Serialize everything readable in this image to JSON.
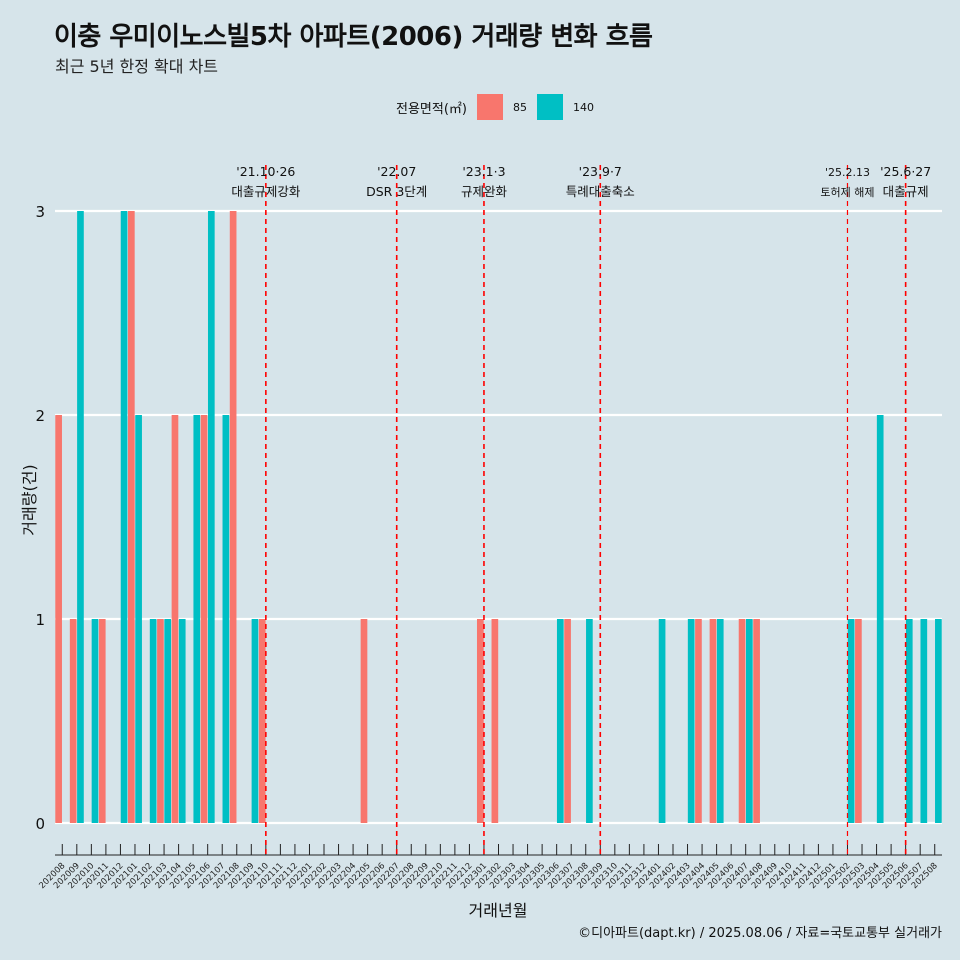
{
  "title": "이충 우미이노스빌5차 아파트(2006) 거래량 변화 흐름",
  "subtitle": "최근 5년 한정 확대 차트",
  "legend": {
    "title": "전용면적(㎡)"
  },
  "caption": "©디아파트(dapt.kr) / 2025.08.06 / 자료=국토교통부 실거래가",
  "colors": {
    "s85": "#f8766d",
    "s140": "#00bfc4",
    "background": "#d6e4ea",
    "event_line": "#ff0000"
  },
  "chart_data": {
    "type": "bar",
    "xlabel": "거래년월",
    "ylabel": "거래량(건)",
    "ylim": [
      0,
      3
    ],
    "yticks": [
      0,
      1,
      2,
      3
    ],
    "grid": "horizontal",
    "legend_position": "top",
    "categories": [
      "202008",
      "202009",
      "202010",
      "202011",
      "202012",
      "202101",
      "202102",
      "202103",
      "202104",
      "202105",
      "202106",
      "202107",
      "202108",
      "202109",
      "202110",
      "202111",
      "202112",
      "202201",
      "202202",
      "202203",
      "202204",
      "202205",
      "202206",
      "202207",
      "202208",
      "202209",
      "202210",
      "202211",
      "202212",
      "202301",
      "202302",
      "202303",
      "202304",
      "202305",
      "202306",
      "202307",
      "202308",
      "202309",
      "202310",
      "202311",
      "202312",
      "202401",
      "202402",
      "202403",
      "202404",
      "202405",
      "202406",
      "202407",
      "202408",
      "202409",
      "202410",
      "202411",
      "202412",
      "202501",
      "202502",
      "202503",
      "202504",
      "202505",
      "202506",
      "202507",
      "202508"
    ],
    "series": [
      {
        "name": "85",
        "values": [
          2,
          1,
          0,
          1,
          0,
          3,
          0,
          1,
          2,
          0,
          2,
          0,
          3,
          0,
          1,
          0,
          0,
          0,
          0,
          0,
          0,
          1,
          0,
          0,
          0,
          0,
          0,
          0,
          0,
          1,
          1,
          0,
          0,
          0,
          0,
          1,
          0,
          0,
          0,
          0,
          0,
          0,
          0,
          0,
          1,
          1,
          0,
          1,
          1,
          0,
          0,
          0,
          0,
          0,
          0,
          1,
          0,
          0,
          0,
          0,
          0
        ]
      },
      {
        "name": "140",
        "values": [
          0,
          3,
          1,
          0,
          3,
          2,
          1,
          1,
          1,
          2,
          3,
          2,
          0,
          1,
          0,
          0,
          0,
          0,
          0,
          0,
          0,
          0,
          0,
          0,
          0,
          0,
          0,
          0,
          0,
          0,
          0,
          0,
          0,
          0,
          1,
          0,
          1,
          0,
          0,
          0,
          0,
          1,
          0,
          1,
          0,
          1,
          0,
          1,
          0,
          0,
          0,
          0,
          0,
          0,
          1,
          0,
          2,
          0,
          1,
          1,
          1
        ]
      }
    ],
    "events": [
      {
        "date": "202110",
        "label1": "'21.10·26",
        "label2": "대출규제강화"
      },
      {
        "date": "202207",
        "label1": "'22.07",
        "label2": "DSR 3단계"
      },
      {
        "date": "202301",
        "label1": "'23.1·3",
        "label2": "규제완화"
      },
      {
        "date": "202309",
        "label1": "'23.9·7",
        "label2": "특례대출축소"
      },
      {
        "date": "202502",
        "label1": "'25.2.13",
        "label2": "토허제 해제"
      },
      {
        "date": "202506",
        "label1": "'25.6·27",
        "label2": "대출규제"
      }
    ]
  }
}
